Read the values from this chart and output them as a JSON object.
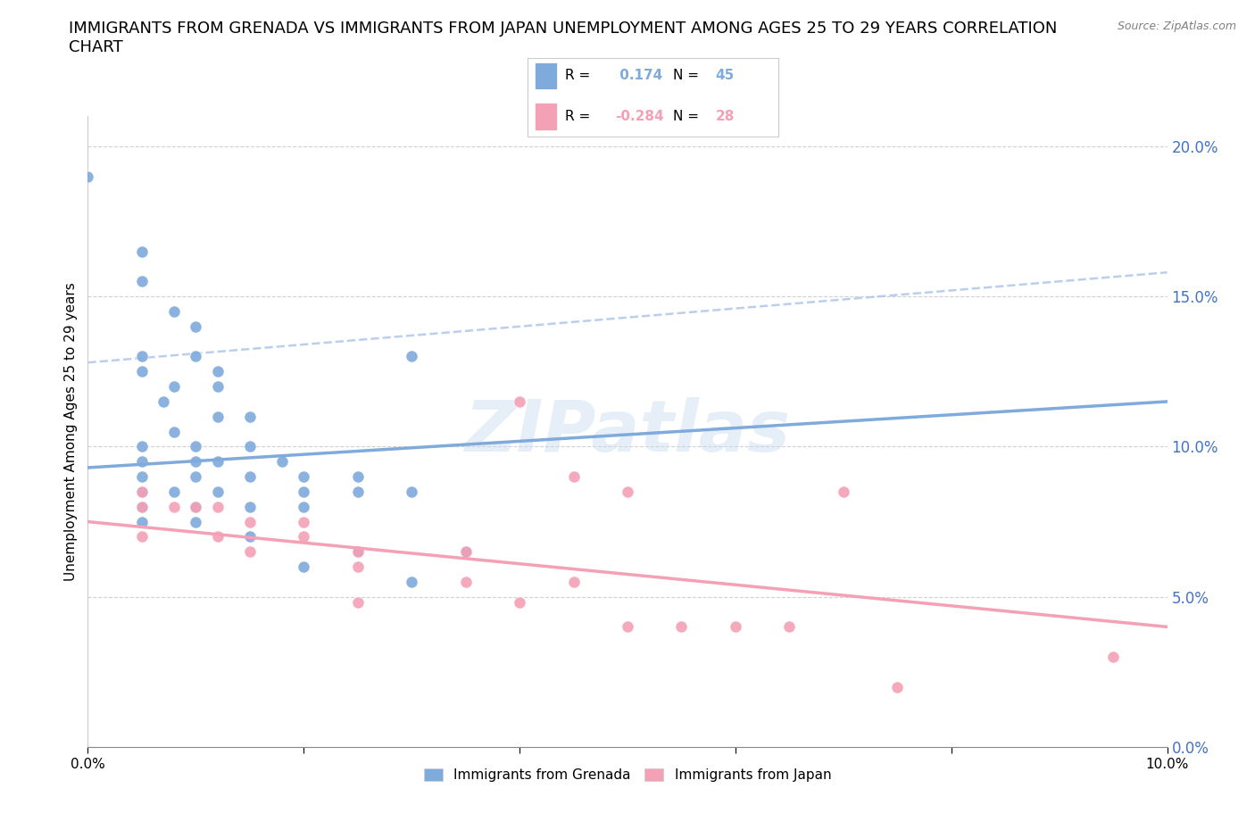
{
  "title": "IMMIGRANTS FROM GRENADA VS IMMIGRANTS FROM JAPAN UNEMPLOYMENT AMONG AGES 25 TO 29 YEARS CORRELATION\nCHART",
  "source_text": "Source: ZipAtlas.com",
  "ylabel": "Unemployment Among Ages 25 to 29 years",
  "xlim": [
    0.0,
    0.1
  ],
  "ylim": [
    0.0,
    0.21
  ],
  "xticks": [
    0.0,
    0.02,
    0.04,
    0.06,
    0.08,
    0.1
  ],
  "yticks": [
    0.0,
    0.05,
    0.1,
    0.15,
    0.2
  ],
  "grenada_color": "#7faadc",
  "japan_color": "#f4a0b5",
  "right_y_color": "#4472c4",
  "grenada_R": 0.174,
  "grenada_N": 45,
  "japan_R": -0.284,
  "japan_N": 28,
  "grenada_points": [
    [
      0.0,
      0.19
    ],
    [
      0.005,
      0.165
    ],
    [
      0.005,
      0.155
    ],
    [
      0.008,
      0.145
    ],
    [
      0.01,
      0.14
    ],
    [
      0.01,
      0.13
    ],
    [
      0.005,
      0.13
    ],
    [
      0.005,
      0.125
    ],
    [
      0.012,
      0.125
    ],
    [
      0.008,
      0.12
    ],
    [
      0.012,
      0.12
    ],
    [
      0.007,
      0.115
    ],
    [
      0.012,
      0.11
    ],
    [
      0.015,
      0.11
    ],
    [
      0.008,
      0.105
    ],
    [
      0.005,
      0.1
    ],
    [
      0.01,
      0.1
    ],
    [
      0.015,
      0.1
    ],
    [
      0.005,
      0.095
    ],
    [
      0.01,
      0.095
    ],
    [
      0.012,
      0.095
    ],
    [
      0.018,
      0.095
    ],
    [
      0.005,
      0.09
    ],
    [
      0.01,
      0.09
    ],
    [
      0.015,
      0.09
    ],
    [
      0.02,
      0.09
    ],
    [
      0.005,
      0.085
    ],
    [
      0.008,
      0.085
    ],
    [
      0.012,
      0.085
    ],
    [
      0.03,
      0.13
    ],
    [
      0.025,
      0.09
    ],
    [
      0.02,
      0.085
    ],
    [
      0.025,
      0.085
    ],
    [
      0.03,
      0.085
    ],
    [
      0.005,
      0.08
    ],
    [
      0.01,
      0.08
    ],
    [
      0.015,
      0.08
    ],
    [
      0.02,
      0.08
    ],
    [
      0.005,
      0.075
    ],
    [
      0.01,
      0.075
    ],
    [
      0.015,
      0.07
    ],
    [
      0.025,
      0.065
    ],
    [
      0.035,
      0.065
    ],
    [
      0.02,
      0.06
    ],
    [
      0.03,
      0.055
    ]
  ],
  "japan_points": [
    [
      0.005,
      0.085
    ],
    [
      0.005,
      0.08
    ],
    [
      0.008,
      0.08
    ],
    [
      0.01,
      0.08
    ],
    [
      0.012,
      0.08
    ],
    [
      0.015,
      0.075
    ],
    [
      0.02,
      0.075
    ],
    [
      0.005,
      0.07
    ],
    [
      0.012,
      0.07
    ],
    [
      0.02,
      0.07
    ],
    [
      0.015,
      0.065
    ],
    [
      0.025,
      0.065
    ],
    [
      0.035,
      0.065
    ],
    [
      0.025,
      0.06
    ],
    [
      0.035,
      0.055
    ],
    [
      0.045,
      0.055
    ],
    [
      0.025,
      0.048
    ],
    [
      0.04,
      0.048
    ],
    [
      0.04,
      0.115
    ],
    [
      0.045,
      0.09
    ],
    [
      0.05,
      0.085
    ],
    [
      0.05,
      0.04
    ],
    [
      0.055,
      0.04
    ],
    [
      0.06,
      0.04
    ],
    [
      0.065,
      0.04
    ],
    [
      0.07,
      0.085
    ],
    [
      0.075,
      0.02
    ],
    [
      0.095,
      0.03
    ]
  ],
  "grenada_trendline": [
    [
      0.0,
      0.093
    ],
    [
      0.1,
      0.115
    ]
  ],
  "japan_trendline": [
    [
      0.0,
      0.075
    ],
    [
      0.1,
      0.04
    ]
  ],
  "upper_dashed_trendline": [
    [
      0.0,
      0.128
    ],
    [
      0.1,
      0.158
    ]
  ],
  "background_color": "#ffffff",
  "grid_color": "#cccccc",
  "watermark": "ZIPatlas",
  "title_fontsize": 13,
  "legend_fontsize": 12,
  "axis_label_fontsize": 11
}
